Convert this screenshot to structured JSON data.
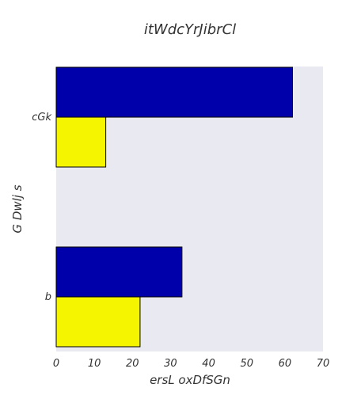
{
  "chart_data": {
    "type": "bar",
    "orientation": "horizontal",
    "title": "itWdcYrJibrCl",
    "xlabel": "ersL oxDfSGn",
    "ylabel": "G Dwlj s",
    "categories": [
      "cGk",
      "b"
    ],
    "series": [
      {
        "color": "#0000aa",
        "values": [
          62,
          33
        ]
      },
      {
        "color": "#f5f500",
        "values": [
          13,
          22
        ]
      }
    ],
    "xlim": [
      0,
      70
    ],
    "xticks": [
      0,
      10,
      20,
      30,
      40,
      50,
      60,
      70
    ],
    "grid": false,
    "background": "#e9e9f1"
  }
}
